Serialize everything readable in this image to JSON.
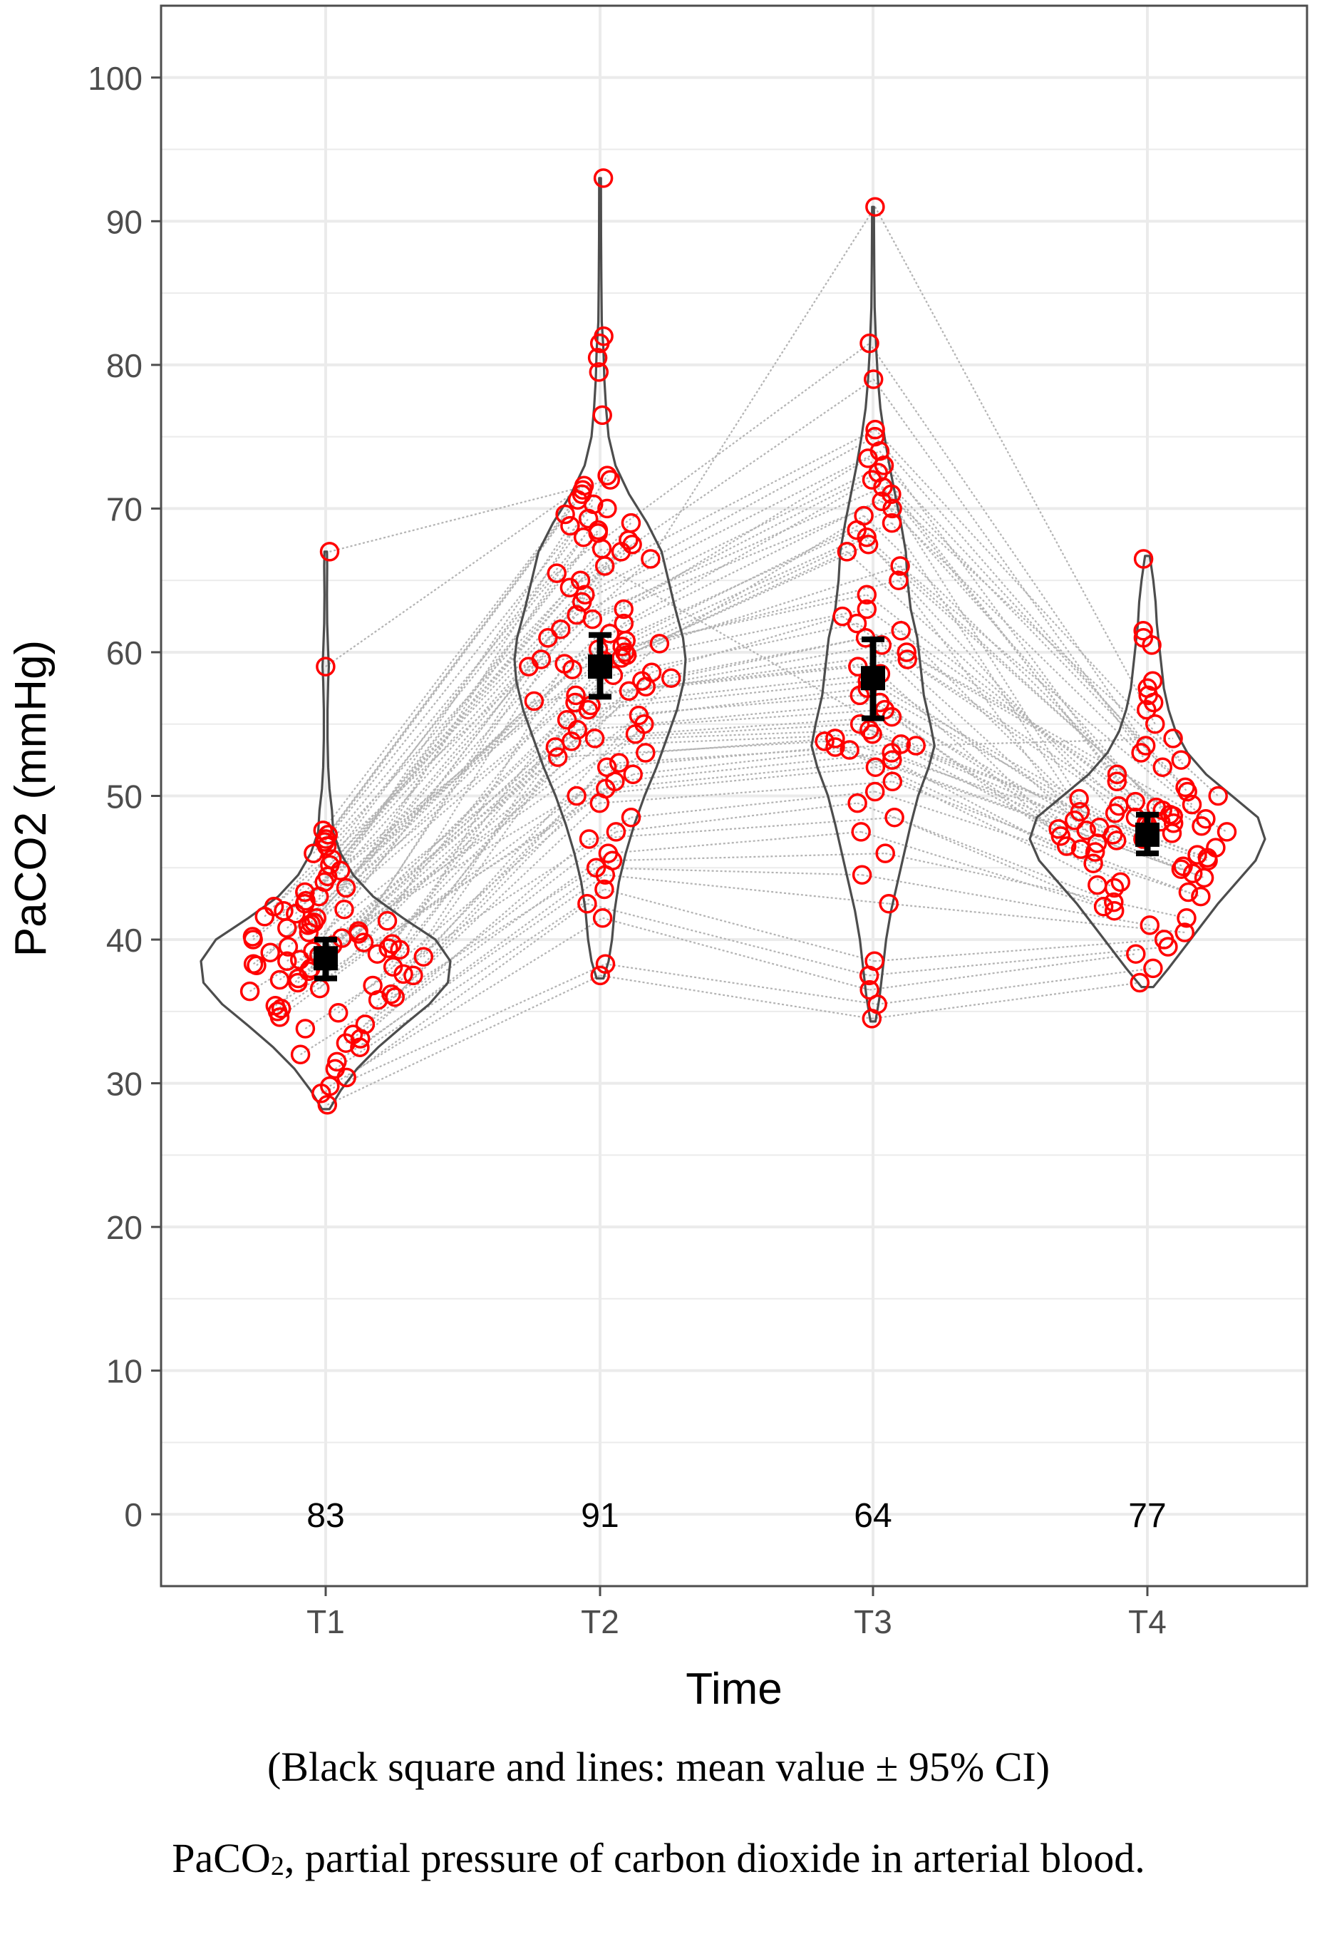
{
  "chart_data": {
    "type": "violin",
    "xlabel": "Time",
    "ylabel": "PaCO2 (mmHg)",
    "ylim": [
      -5,
      105
    ],
    "y_ticks": [
      0,
      10,
      20,
      30,
      40,
      50,
      60,
      70,
      80,
      90,
      100
    ],
    "categories": [
      "T1",
      "T2",
      "T3",
      "T4"
    ],
    "counts": [
      83,
      91,
      64,
      77
    ],
    "means": [
      38.7,
      59.0,
      58.2,
      47.3
    ],
    "ci_low": [
      37.3,
      56.9,
      55.4,
      46.0
    ],
    "ci_high": [
      40.0,
      61.2,
      60.9,
      48.7
    ],
    "points": {
      "T1": [
        28.5,
        29.3,
        29.8,
        30.4,
        31.0,
        31.5,
        32.0,
        32.5,
        32.8,
        33.1,
        33.4,
        33.8,
        34.1,
        34.6,
        34.9,
        35.2,
        35.4,
        35.8,
        36.0,
        36.2,
        36.4,
        36.6,
        36.8,
        37.0,
        37.2,
        37.3,
        37.5,
        37.6,
        37.8,
        38.0,
        38.1,
        38.2,
        38.3,
        38.5,
        38.6,
        38.7,
        38.8,
        38.9,
        39.0,
        39.1,
        39.2,
        39.3,
        39.4,
        39.5,
        39.6,
        39.7,
        39.8,
        40.0,
        40.1,
        40.2,
        40.4,
        40.5,
        40.6,
        40.8,
        41.0,
        41.1,
        41.2,
        41.3,
        41.5,
        41.6,
        41.8,
        42.0,
        42.1,
        42.3,
        42.5,
        42.7,
        43.0,
        43.3,
        43.6,
        44.0,
        44.4,
        44.8,
        45.2,
        45.6,
        46.0,
        46.5,
        46.8,
        47.0,
        47.3,
        47.6,
        59.0,
        67.0,
        35.0
      ],
      "T2": [
        37.5,
        38.3,
        41.5,
        42.5,
        43.5,
        44.5,
        45.0,
        45.5,
        46.0,
        47.0,
        47.5,
        48.5,
        49.5,
        50.0,
        50.5,
        51.0,
        51.5,
        52.0,
        52.3,
        52.7,
        53.0,
        53.4,
        53.8,
        54.0,
        54.3,
        54.6,
        55.0,
        55.3,
        55.6,
        56.0,
        56.3,
        56.6,
        57.0,
        57.3,
        57.6,
        58.0,
        58.2,
        58.4,
        58.6,
        58.8,
        59.0,
        59.2,
        59.4,
        59.6,
        59.8,
        60.0,
        60.2,
        60.4,
        60.6,
        60.8,
        61.0,
        61.3,
        61.6,
        62.0,
        62.3,
        62.6,
        63.0,
        63.5,
        64.0,
        64.5,
        65.0,
        65.5,
        66.0,
        66.5,
        67.0,
        67.2,
        67.5,
        67.8,
        68.0,
        68.3,
        68.5,
        68.8,
        69.0,
        69.3,
        69.6,
        70.0,
        70.3,
        70.6,
        71.0,
        71.3,
        71.6,
        72.0,
        72.3,
        76.5,
        79.5,
        80.5,
        81.5,
        82.0,
        56.5,
        59.5,
        93.0
      ],
      "T3": [
        34.5,
        35.5,
        36.5,
        37.5,
        38.5,
        42.5,
        44.5,
        46.0,
        47.5,
        48.5,
        49.5,
        50.3,
        51.0,
        52.0,
        52.5,
        53.0,
        53.2,
        53.4,
        53.6,
        53.8,
        54.0,
        54.3,
        54.6,
        55.0,
        55.5,
        56.0,
        56.5,
        57.0,
        57.5,
        58.0,
        58.5,
        59.0,
        59.5,
        60.0,
        60.5,
        61.0,
        61.5,
        62.0,
        62.5,
        63.0,
        64.0,
        65.0,
        66.0,
        67.0,
        67.5,
        68.0,
        68.5,
        69.0,
        69.5,
        70.0,
        70.5,
        71.0,
        71.5,
        72.0,
        72.5,
        73.0,
        73.5,
        74.0,
        75.0,
        75.5,
        79.0,
        81.5,
        53.5,
        91.0
      ],
      "T4": [
        37.0,
        38.0,
        39.0,
        39.5,
        40.0,
        40.5,
        41.0,
        41.5,
        42.0,
        42.3,
        42.6,
        43.0,
        43.3,
        43.6,
        44.0,
        44.3,
        44.6,
        44.9,
        45.1,
        45.3,
        45.5,
        45.7,
        45.9,
        46.1,
        46.3,
        46.5,
        46.7,
        46.9,
        47.0,
        47.1,
        47.2,
        47.3,
        47.4,
        47.5,
        47.6,
        47.7,
        47.8,
        47.9,
        48.0,
        48.1,
        48.2,
        48.3,
        48.4,
        48.5,
        48.6,
        48.7,
        48.8,
        48.9,
        49.0,
        49.2,
        49.4,
        49.6,
        49.8,
        50.0,
        50.3,
        50.6,
        51.0,
        51.5,
        52.0,
        52.5,
        53.0,
        53.5,
        54.0,
        55.0,
        56.0,
        56.5,
        57.0,
        57.5,
        58.0,
        60.5,
        61.0,
        61.5,
        66.5,
        43.8,
        46.4,
        48.1,
        49.3
      ]
    },
    "violin_density": {
      "T1": [
        [
          28.2,
          0.03
        ],
        [
          29.5,
          0.12
        ],
        [
          31,
          0.25
        ],
        [
          32.5,
          0.42
        ],
        [
          34,
          0.62
        ],
        [
          35.5,
          0.83
        ],
        [
          37,
          0.98
        ],
        [
          38.5,
          1.0
        ],
        [
          40,
          0.88
        ],
        [
          41.5,
          0.62
        ],
        [
          43,
          0.38
        ],
        [
          44.5,
          0.22
        ],
        [
          46,
          0.12
        ],
        [
          47.5,
          0.06
        ],
        [
          49,
          0.05
        ],
        [
          50.5,
          0.03
        ],
        [
          52,
          0.02
        ],
        [
          54,
          0.015
        ],
        [
          56,
          0.015
        ],
        [
          58,
          0.02
        ],
        [
          59,
          0.025
        ],
        [
          60,
          0.02
        ],
        [
          62,
          0.012
        ],
        [
          64,
          0.01
        ],
        [
          66,
          0.012
        ],
        [
          67,
          0.01
        ]
      ],
      "T2": [
        [
          37.3,
          0.04
        ],
        [
          38.5,
          0.1
        ],
        [
          40,
          0.14
        ],
        [
          42,
          0.17
        ],
        [
          44,
          0.22
        ],
        [
          46,
          0.3
        ],
        [
          48,
          0.4
        ],
        [
          50,
          0.52
        ],
        [
          52,
          0.66
        ],
        [
          54,
          0.78
        ],
        [
          56,
          0.9
        ],
        [
          58,
          0.98
        ],
        [
          59.5,
          1.0
        ],
        [
          61,
          0.97
        ],
        [
          63,
          0.88
        ],
        [
          65,
          0.8
        ],
        [
          67,
          0.72
        ],
        [
          69,
          0.55
        ],
        [
          71,
          0.34
        ],
        [
          73,
          0.18
        ],
        [
          75,
          0.1
        ],
        [
          77,
          0.07
        ],
        [
          79,
          0.05
        ],
        [
          81,
          0.04
        ],
        [
          83,
          0.02
        ],
        [
          86,
          0.015
        ],
        [
          89,
          0.012
        ],
        [
          93,
          0.01
        ]
      ],
      "T3": [
        [
          34.3,
          0.03
        ],
        [
          36,
          0.08
        ],
        [
          38,
          0.12
        ],
        [
          40,
          0.16
        ],
        [
          42,
          0.22
        ],
        [
          44,
          0.3
        ],
        [
          46,
          0.38
        ],
        [
          48,
          0.46
        ],
        [
          50,
          0.55
        ],
        [
          52,
          0.68
        ],
        [
          53.5,
          0.75
        ],
        [
          55,
          0.7
        ],
        [
          57,
          0.62
        ],
        [
          59,
          0.58
        ],
        [
          61,
          0.54
        ],
        [
          63,
          0.46
        ],
        [
          65,
          0.42
        ],
        [
          67,
          0.4
        ],
        [
          69,
          0.34
        ],
        [
          71,
          0.27
        ],
        [
          73,
          0.2
        ],
        [
          75,
          0.14
        ],
        [
          77,
          0.09
        ],
        [
          79,
          0.06
        ],
        [
          81,
          0.04
        ],
        [
          84,
          0.02
        ],
        [
          87,
          0.015
        ],
        [
          91,
          0.01
        ]
      ],
      "T4": [
        [
          36.7,
          0.05
        ],
        [
          38,
          0.18
        ],
        [
          39.5,
          0.32
        ],
        [
          41,
          0.46
        ],
        [
          42.5,
          0.6
        ],
        [
          44,
          0.76
        ],
        [
          45.5,
          0.92
        ],
        [
          47,
          1.0
        ],
        [
          48.5,
          0.94
        ],
        [
          50,
          0.72
        ],
        [
          51.5,
          0.5
        ],
        [
          53,
          0.34
        ],
        [
          54.5,
          0.24
        ],
        [
          56,
          0.18
        ],
        [
          57.5,
          0.14
        ],
        [
          59,
          0.12
        ],
        [
          60.5,
          0.1
        ],
        [
          62,
          0.08
        ],
        [
          63.5,
          0.07
        ],
        [
          65,
          0.05
        ],
        [
          66.7,
          0.02
        ]
      ]
    },
    "legend": "none",
    "grid": true
  },
  "captions": {
    "note": "(Black square and lines: mean value ± 95% CI)",
    "definition_term": "PaCO",
    "definition_sub": "2",
    "definition_rest": ", partial pressure of carbon dioxide in arterial blood."
  },
  "colors": {
    "point": "#ff0000",
    "connector": "#b3b3b3",
    "violin": "#4d4d4d",
    "mean": "#000000",
    "grid": "#ebebeb",
    "panel_border": "#4d4d4d"
  }
}
